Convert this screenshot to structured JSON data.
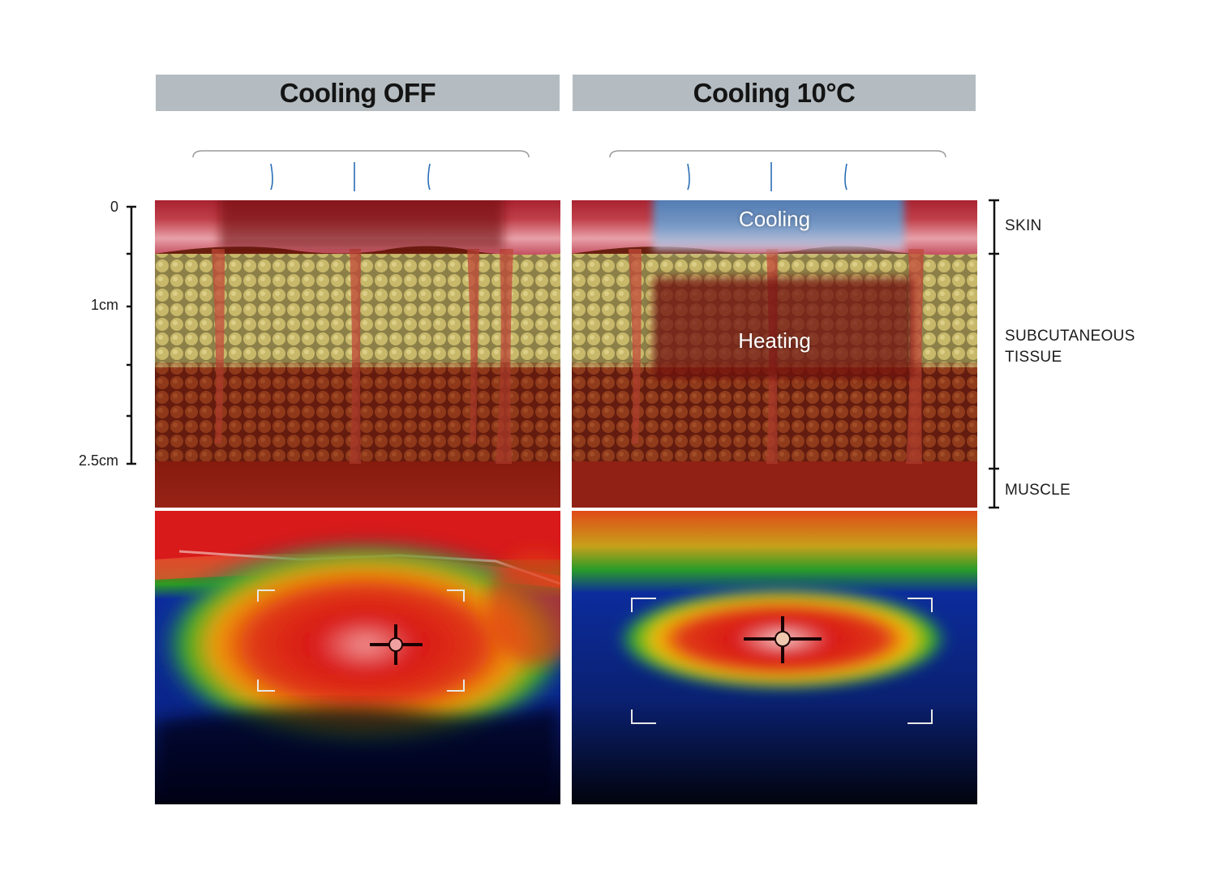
{
  "headers": {
    "left": "Cooling OFF",
    "right": "Cooling 10°C"
  },
  "overlay": {
    "cooling": "Cooling",
    "heating": "Heating"
  },
  "depth_scale": {
    "top": "0",
    "mid": "1cm",
    "bottom": "2.5cm"
  },
  "layers": {
    "skin": "SKIN",
    "subcutaneous_line1": "SUBCUTANEOUS",
    "subcutaneous_line2": "TISSUE",
    "muscle": "MUSCLE"
  },
  "colors": {
    "header_bg": "#b4bcc1",
    "skin": "#b3303a",
    "fat": "#bfae62",
    "deep_fat": "#8a3a1c",
    "muscle": "#9a2418",
    "cooling_zone": "#5f9fd6",
    "heating_zone": "#7a0d0d",
    "thermal_hot": "#e02020",
    "thermal_cold": "#1034a8"
  }
}
